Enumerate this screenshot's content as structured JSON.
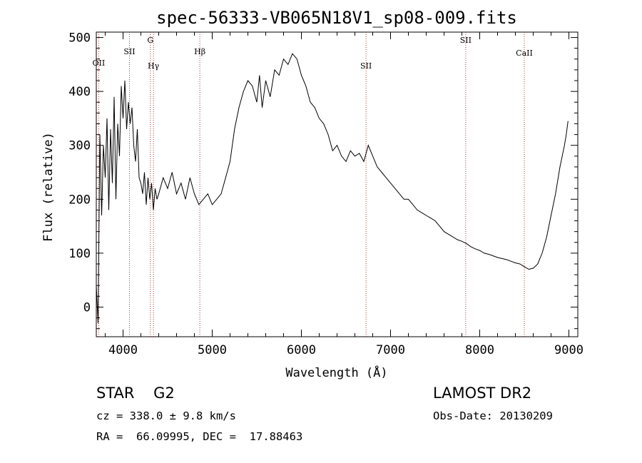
{
  "chart_data": {
    "type": "line",
    "title": "spec-56333-VB065N18V1_sp08-009.fits",
    "xlabel": "Wavelength (Å)",
    "ylabel": "Flux (relative)",
    "xlim": [
      3700,
      9100
    ],
    "ylim": [
      -55,
      510
    ],
    "x_ticks": [
      4000,
      5000,
      6000,
      7000,
      8000,
      9000
    ],
    "y_ticks": [
      0,
      100,
      200,
      300,
      400,
      500
    ],
    "grid": false,
    "series": [
      {
        "x": [
          3700,
          3720,
          3740,
          3760,
          3780,
          3800,
          3820,
          3840,
          3860,
          3880,
          3900,
          3920,
          3940,
          3960,
          3980,
          4000,
          4020,
          4040,
          4060,
          4080,
          4100,
          4120,
          4140,
          4160,
          4180,
          4200,
          4220,
          4240,
          4260,
          4280,
          4300,
          4320,
          4340,
          4360,
          4380,
          4400,
          4450,
          4500,
          4550,
          4600,
          4650,
          4700,
          4750,
          4800,
          4850,
          4900,
          4950,
          5000,
          5050,
          5100,
          5150,
          5200,
          5250,
          5300,
          5350,
          5400,
          5450,
          5500,
          5530,
          5560,
          5600,
          5650,
          5700,
          5750,
          5800,
          5850,
          5900,
          5950,
          6000,
          6050,
          6100,
          6150,
          6200,
          6250,
          6300,
          6350,
          6400,
          6450,
          6500,
          6550,
          6600,
          6650,
          6700,
          6750,
          6800,
          6850,
          6900,
          6950,
          7000,
          7050,
          7100,
          7150,
          7200,
          7250,
          7300,
          7350,
          7400,
          7450,
          7500,
          7550,
          7600,
          7650,
          7700,
          7750,
          7800,
          7850,
          7900,
          7950,
          8000,
          8050,
          8100,
          8150,
          8200,
          8250,
          8300,
          8350,
          8400,
          8450,
          8500,
          8550,
          8600,
          8650,
          8700,
          8750,
          8800,
          8850,
          8900,
          8950,
          8970,
          8990
        ],
        "y": [
          40,
          -30,
          320,
          170,
          300,
          240,
          350,
          180,
          330,
          230,
          390,
          200,
          340,
          280,
          410,
          350,
          420,
          330,
          380,
          340,
          370,
          300,
          270,
          330,
          240,
          230,
          210,
          250,
          190,
          240,
          200,
          230,
          180,
          220,
          200,
          210,
          240,
          220,
          250,
          210,
          230,
          200,
          240,
          210,
          190,
          200,
          210,
          190,
          200,
          210,
          240,
          270,
          330,
          370,
          400,
          420,
          410,
          380,
          430,
          370,
          420,
          390,
          440,
          430,
          460,
          450,
          470,
          460,
          430,
          410,
          380,
          370,
          350,
          340,
          320,
          290,
          300,
          280,
          270,
          290,
          280,
          285,
          270,
          300,
          280,
          260,
          250,
          240,
          230,
          220,
          210,
          200,
          200,
          190,
          180,
          175,
          170,
          165,
          160,
          150,
          140,
          135,
          130,
          125,
          122,
          118,
          112,
          108,
          105,
          100,
          98,
          95,
          92,
          90,
          88,
          85,
          82,
          80,
          75,
          70,
          72,
          80,
          100,
          130,
          170,
          210,
          260,
          300,
          320,
          345
        ]
      }
    ],
    "line_labels": [
      {
        "name": "OII",
        "x": 3727
      },
      {
        "name": "SII",
        "x": 4072
      },
      {
        "name": "G",
        "x": 4306
      },
      {
        "name": "Hγ",
        "x": 4341
      },
      {
        "name": "Hβ",
        "x": 4861
      },
      {
        "name": "SII",
        "x": 6725
      },
      {
        "name": "SII",
        "x": 7843
      },
      {
        "name": "CaII",
        "x": 8500
      }
    ]
  },
  "info": {
    "object": "STAR    G2",
    "survey": "LAMOST DR2",
    "cz": "cz = 338.0 ± 9.8 km/s",
    "obs_date": "Obs-Date: 20130209",
    "radec": "RA =  66.09995, DEC =  17.88463"
  }
}
